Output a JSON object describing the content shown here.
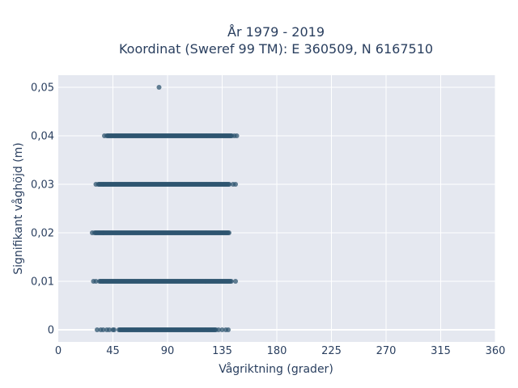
{
  "chart_data": {
    "type": "scatter",
    "title": [
      "År 1979 - 2019",
      "Koordinat (Sweref 99 TM): E 360509, N 6167510"
    ],
    "xlabel": "Vågriktning (grader)",
    "ylabel": "Signifikant våghöjd (m)",
    "xlim": [
      0,
      360
    ],
    "ylim": [
      -0.0025,
      0.0525
    ],
    "xticks": [
      0,
      45,
      90,
      135,
      180,
      225,
      270,
      315,
      360
    ],
    "xtick_labels": [
      "0",
      "45",
      "90",
      "135",
      "180",
      "225",
      "270",
      "315",
      "360"
    ],
    "yticks": [
      0,
      0.01,
      0.02,
      0.03,
      0.04,
      0.05
    ],
    "ytick_labels": [
      "0",
      "0,01",
      "0,02",
      "0,03",
      "0,04",
      "0,05"
    ],
    "grid": true,
    "marker_color": "#2f5670",
    "background": "#e5e8f0",
    "bands": [
      {
        "y": 0.0,
        "dense_from": 50,
        "dense_to": 130,
        "outliers": [
          32,
          35,
          37,
          40,
          42,
          45,
          46,
          132,
          135,
          138,
          140
        ]
      },
      {
        "y": 0.01,
        "dense_from": 34,
        "dense_to": 143,
        "outliers": [
          29,
          31,
          146
        ]
      },
      {
        "y": 0.02,
        "dense_from": 30,
        "dense_to": 141,
        "outliers": [
          28
        ]
      },
      {
        "y": 0.03,
        "dense_from": 33,
        "dense_to": 141,
        "outliers": [
          31,
          144,
          146
        ]
      },
      {
        "y": 0.04,
        "dense_from": 40,
        "dense_to": 143,
        "outliers": [
          38,
          145,
          147
        ]
      }
    ],
    "points": [
      {
        "x": 83,
        "y": 0.05
      }
    ]
  }
}
